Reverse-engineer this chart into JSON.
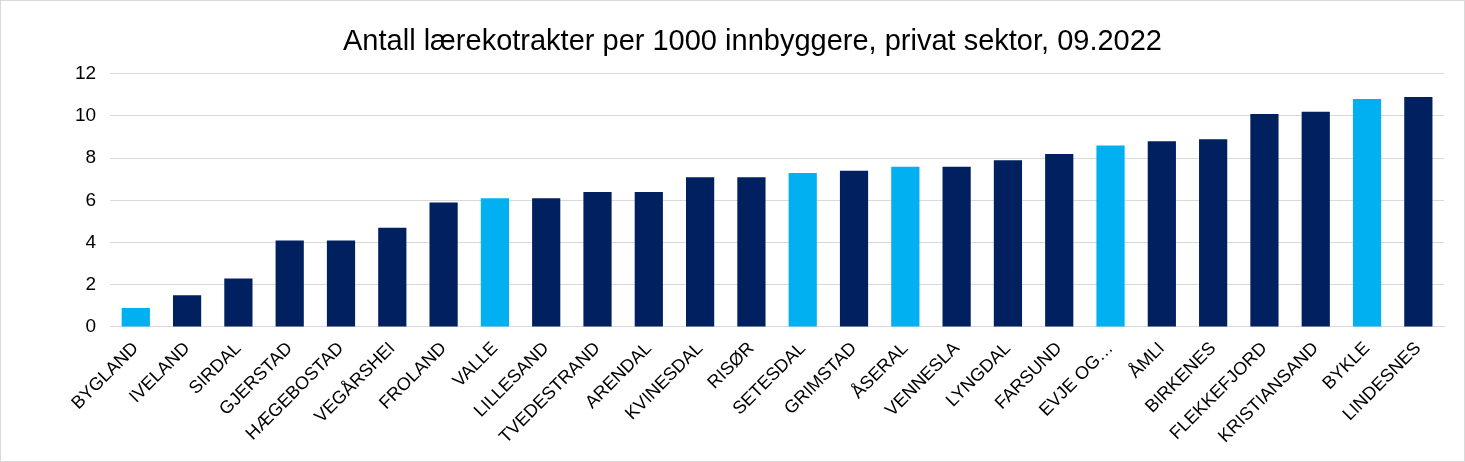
{
  "chart_data": {
    "type": "bar",
    "title": "Antall lærekotrakter per 1000 innbyggere, privat sektor, 09.2022",
    "categories": [
      "BYGLAND",
      "IVELAND",
      "SIRDAL",
      "GJERSTAD",
      "HÆGEBOSTAD",
      "VEGÅRSHEI",
      "FROLAND",
      "VALLE",
      "LILLESAND",
      "TVEDESTRAND",
      "ARENDAL",
      "KVINESDAL",
      "RISØR",
      "SETESDAL",
      "GRIMSTAD",
      "ÅSERAL",
      "VENNESLA",
      "LYNGDAL",
      "FARSUND",
      "EVJE OG…",
      "ÅMLI",
      "BIRKENES",
      "FLEKKEFJORD",
      "KRISTIANSAND",
      "BYKLE",
      "LINDESNES"
    ],
    "values": [
      0.9,
      1.5,
      2.3,
      4.1,
      4.1,
      4.7,
      5.9,
      6.1,
      6.1,
      6.4,
      6.4,
      7.1,
      7.1,
      7.3,
      7.4,
      7.6,
      7.6,
      7.9,
      8.2,
      8.6,
      8.8,
      8.9,
      10.1,
      10.2,
      10.8,
      10.9
    ],
    "colors": [
      "#00b0f0",
      "#002060",
      "#002060",
      "#002060",
      "#002060",
      "#002060",
      "#002060",
      "#00b0f0",
      "#002060",
      "#002060",
      "#002060",
      "#002060",
      "#002060",
      "#00b0f0",
      "#002060",
      "#00b0f0",
      "#002060",
      "#002060",
      "#002060",
      "#00b0f0",
      "#002060",
      "#002060",
      "#002060",
      "#002060",
      "#00b0f0",
      "#002060"
    ],
    "ylim": [
      0,
      12
    ],
    "yticks": [
      0,
      2,
      4,
      6,
      8,
      10,
      12
    ],
    "grid": "y",
    "legend": false
  }
}
